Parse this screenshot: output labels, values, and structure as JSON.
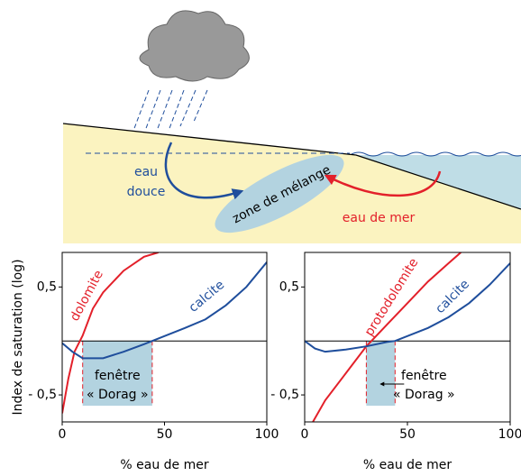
{
  "diagram": {
    "fresh_water": [
      "eau",
      "douce"
    ],
    "mixing_zone": "zone de mélange",
    "sea_water": "eau de mer"
  },
  "chart_data": [
    {
      "type": "line",
      "ylabel": "Index de saturation (log)",
      "xlabel": "% eau de mer",
      "xlim": [
        0,
        100
      ],
      "ylim": [
        -0.75,
        0.82
      ],
      "xticks": [
        0,
        50,
        100
      ],
      "yticks": [
        {
          "value": 0.5,
          "label": "0,5"
        },
        {
          "value": -0.5,
          "label": "- 0,5"
        }
      ],
      "reference_line": 0,
      "window": {
        "x": [
          10,
          44
        ],
        "y": [
          -0.6,
          0
        ],
        "label": [
          "fenêtre",
          "« Dorag »"
        ]
      },
      "series": [
        {
          "name": "dolomite",
          "color": "#e3202a",
          "x": [
            0,
            3,
            6,
            10,
            15,
            20,
            30,
            40,
            47
          ],
          "values": [
            -0.67,
            -0.35,
            -0.1,
            0.05,
            0.3,
            0.45,
            0.65,
            0.78,
            0.82
          ]
        },
        {
          "name": "calcite",
          "color": "#1f4e9c",
          "x": [
            0,
            5,
            10,
            20,
            30,
            40,
            44,
            60,
            70,
            80,
            90,
            100
          ],
          "values": [
            -0.02,
            -0.1,
            -0.16,
            -0.16,
            -0.1,
            -0.03,
            0,
            0.12,
            0.2,
            0.33,
            0.5,
            0.73
          ]
        }
      ]
    },
    {
      "type": "line",
      "xlabel": "% eau de mer",
      "xlim": [
        0,
        100
      ],
      "ylim": [
        -0.75,
        0.82
      ],
      "xticks": [
        0,
        50,
        100
      ],
      "yticks": [
        {
          "value": 0.5,
          "label": "0,5"
        },
        {
          "value": -0.5,
          "label": "- 0,5"
        }
      ],
      "reference_line": 0,
      "window": {
        "x": [
          30,
          44
        ],
        "y": [
          -0.6,
          0
        ],
        "label": [
          "fenêtre",
          "« Dorag »"
        ]
      },
      "series": [
        {
          "name": "protodolomite",
          "color": "#e3202a",
          "x": [
            4,
            10,
            20,
            30,
            40,
            50,
            60,
            70,
            76
          ],
          "values": [
            -0.75,
            -0.55,
            -0.3,
            -0.05,
            0.15,
            0.35,
            0.55,
            0.72,
            0.82
          ]
        },
        {
          "name": "calcite",
          "color": "#1f4e9c",
          "x": [
            0,
            5,
            10,
            20,
            30,
            40,
            44,
            60,
            70,
            80,
            90,
            100
          ],
          "values": [
            0,
            -0.07,
            -0.1,
            -0.08,
            -0.05,
            -0.01,
            0,
            0.12,
            0.22,
            0.35,
            0.52,
            0.72
          ]
        }
      ]
    }
  ]
}
